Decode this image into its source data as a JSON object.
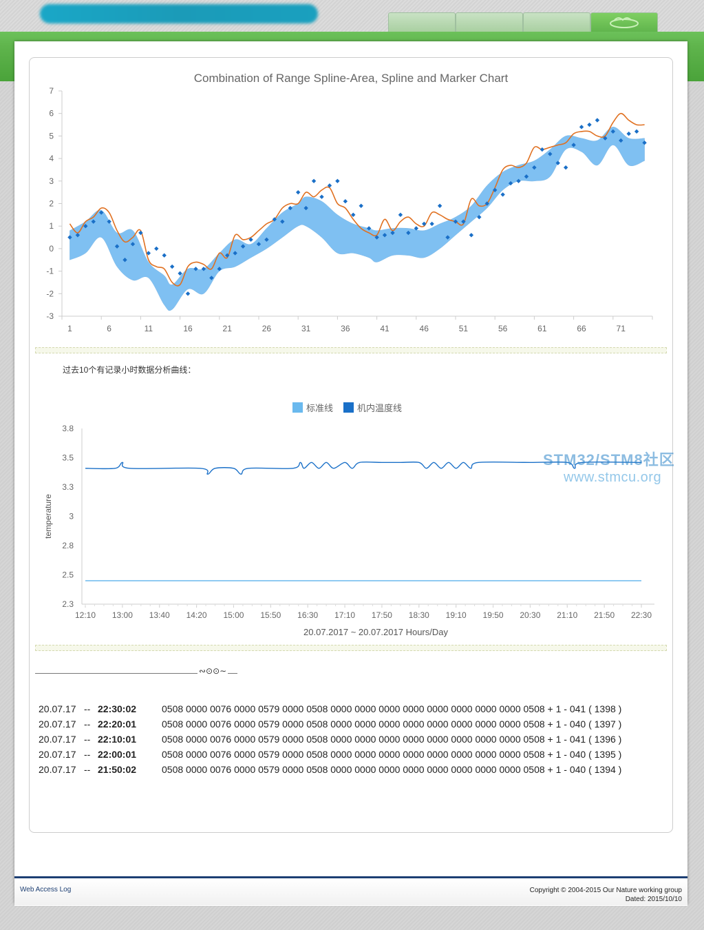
{
  "chart1": {
    "chart_data": {
      "type": "area",
      "title": "Combination of Range Spline-Area, Spline and Marker Chart",
      "ylim": [
        -3,
        7
      ],
      "yticks": [
        -3,
        -2,
        -1,
        0,
        1,
        2,
        3,
        4,
        5,
        6,
        7
      ],
      "xrange": [
        0,
        75
      ],
      "xtick_labels": [
        "1",
        "6",
        "11",
        "16",
        "21",
        "26",
        "31",
        "36",
        "41",
        "46",
        "51",
        "56",
        "61",
        "66",
        "71"
      ],
      "series": [
        {
          "kind": "range-spline-area",
          "color": "#7fc0f2",
          "x": [
            1,
            3,
            5,
            7,
            9,
            11,
            13,
            14,
            16,
            18,
            20,
            22,
            24,
            26,
            28,
            30,
            31,
            33,
            35,
            37,
            39,
            40,
            42,
            44,
            46,
            48,
            50,
            52,
            54,
            56,
            58,
            60,
            62,
            64,
            66,
            68,
            70,
            72,
            74
          ],
          "low": [
            -0.5,
            -0.2,
            0.5,
            -0.8,
            -1.4,
            -1.3,
            -2.5,
            -2.7,
            -1.8,
            -2.0,
            -1.0,
            -0.8,
            -0.4,
            0.0,
            0.5,
            1.0,
            1.0,
            0.5,
            -0.2,
            -0.2,
            -0.4,
            -0.6,
            -0.3,
            -0.3,
            -0.4,
            0.0,
            0.6,
            1.2,
            1.8,
            2.6,
            3.0,
            3.0,
            3.2,
            4.4,
            4.3,
            3.7,
            4.6,
            3.7,
            3.9
          ],
          "high": [
            0.8,
            1.2,
            1.7,
            0.7,
            0.8,
            -0.6,
            -1.2,
            -1.6,
            -0.9,
            -0.9,
            -0.2,
            0.4,
            0.2,
            0.9,
            1.6,
            2.0,
            2.3,
            2.1,
            1.5,
            1.1,
            0.9,
            0.8,
            0.9,
            0.9,
            0.8,
            1.1,
            1.4,
            1.9,
            2.8,
            3.4,
            3.7,
            3.9,
            4.4,
            5.0,
            4.9,
            4.8,
            5.4,
            4.9,
            4.9
          ]
        },
        {
          "kind": "spline",
          "color": "#e07020",
          "x": [
            1,
            2,
            3,
            4,
            5,
            6,
            7,
            8,
            9,
            10,
            11,
            12,
            13,
            14,
            15,
            16,
            17,
            18,
            19,
            20,
            21,
            22,
            23,
            24,
            25,
            26,
            27,
            28,
            29,
            30,
            31,
            32,
            33,
            34,
            35,
            36,
            37,
            38,
            39,
            40,
            41,
            42,
            43,
            44,
            45,
            46,
            47,
            48,
            49,
            50,
            51,
            52,
            53,
            54,
            55,
            56,
            57,
            58,
            59,
            60,
            61,
            62,
            63,
            64,
            65,
            66,
            67,
            68,
            69,
            70,
            71,
            72,
            73,
            74
          ],
          "y": [
            1.1,
            0.7,
            1.2,
            1.4,
            1.8,
            1.6,
            0.8,
            0.3,
            0.5,
            0.8,
            -0.5,
            -0.8,
            -0.9,
            -1.5,
            -1.6,
            -0.8,
            -0.6,
            -0.7,
            -0.9,
            -0.2,
            -0.4,
            0.6,
            0.4,
            0.5,
            0.8,
            1.1,
            1.3,
            1.8,
            2.0,
            2.0,
            2.5,
            2.3,
            2.6,
            2.7,
            2.0,
            1.8,
            1.3,
            0.9,
            0.7,
            0.6,
            1.3,
            0.8,
            1.2,
            1.4,
            1.1,
            1.0,
            1.6,
            1.5,
            1.3,
            1.2,
            1.1,
            2.2,
            1.9,
            2.0,
            2.7,
            3.5,
            3.7,
            3.6,
            3.8,
            4.5,
            4.4,
            4.5,
            4.6,
            4.7,
            5.1,
            5.2,
            5.2,
            5.0,
            5.0,
            5.6,
            6.0,
            5.7,
            5.5,
            5.5
          ]
        },
        {
          "kind": "marker",
          "color": "#1a6fc7",
          "x": [
            1,
            2,
            3,
            4,
            5,
            6,
            7,
            8,
            9,
            10,
            11,
            12,
            13,
            14,
            15,
            16,
            17,
            18,
            19,
            20,
            21,
            22,
            23,
            24,
            25,
            26,
            27,
            28,
            29,
            30,
            31,
            32,
            33,
            34,
            35,
            36,
            37,
            38,
            39,
            40,
            41,
            42,
            43,
            44,
            45,
            46,
            47,
            48,
            49,
            50,
            51,
            52,
            53,
            54,
            55,
            56,
            57,
            58,
            59,
            60,
            61,
            62,
            63,
            64,
            65,
            66,
            67,
            68,
            69,
            70,
            71,
            72,
            73,
            74
          ],
          "y": [
            0.5,
            0.6,
            1.0,
            1.2,
            1.6,
            1.2,
            0.1,
            -0.5,
            0.2,
            0.7,
            -0.2,
            0.0,
            -0.3,
            -0.8,
            -1.1,
            -2.0,
            -0.9,
            -0.9,
            -1.3,
            -0.9,
            -0.3,
            -0.2,
            0.1,
            0.4,
            0.2,
            0.4,
            1.3,
            1.2,
            1.8,
            2.5,
            1.8,
            3.0,
            2.3,
            2.8,
            3.0,
            2.1,
            1.5,
            1.9,
            0.9,
            0.5,
            0.6,
            0.7,
            1.5,
            0.7,
            0.9,
            1.1,
            1.1,
            1.9,
            0.5,
            1.2,
            1.2,
            0.6,
            1.4,
            2.0,
            2.6,
            2.4,
            2.9,
            3.0,
            3.2,
            3.6,
            4.4,
            4.2,
            3.8,
            3.6,
            4.6,
            5.4,
            5.5,
            5.7,
            4.9,
            5.2,
            4.8,
            5.1,
            5.2,
            4.7
          ]
        }
      ]
    }
  },
  "hours_label": "过去10个有记录小时数据分析曲线：",
  "chart2": {
    "chart_data": {
      "type": "line",
      "ylabel": "temperature",
      "xlabel": "20.07.2017 ~ 20.07.2017 Hours/Day",
      "ylim": [
        2.3,
        3.8
      ],
      "yticks": [
        "2.3",
        "2.5",
        "2.8",
        "3",
        "3.3",
        "3.5",
        "3.8"
      ],
      "ytick_values": [
        2.3,
        2.55,
        2.8,
        3.05,
        3.3,
        3.55,
        3.8
      ],
      "x_categories": [
        "12:10",
        "13:00",
        "13:40",
        "14:20",
        "15:00",
        "15:50",
        "16:30",
        "17:10",
        "17:50",
        "18:30",
        "19:10",
        "19:50",
        "20:30",
        "21:10",
        "21:50",
        "22:30"
      ],
      "series": [
        {
          "name": "标准线",
          "color": "#6ab9ee",
          "values": [
            2.5,
            2.5,
            2.5,
            2.5,
            2.5,
            2.5,
            2.5,
            2.5,
            2.5,
            2.5,
            2.5,
            2.5,
            2.5,
            2.5,
            2.5,
            2.5
          ]
        },
        {
          "name": "机内温度线",
          "color": "#1a70c8",
          "t": [
            0,
            0.8,
            1.0,
            1.2,
            3.1,
            3.3,
            3.5,
            4.0,
            4.2,
            4.4,
            5.6,
            5.8,
            5.9,
            6.1,
            6.3,
            6.5,
            6.7,
            7.0,
            7.2,
            7.4,
            8.0,
            8.5,
            9.0,
            9.2,
            9.4,
            9.6,
            9.8,
            10.0,
            10.2,
            10.4,
            10.6,
            12.0,
            13.0,
            13.2,
            13.4,
            15.0
          ],
          "values": [
            3.46,
            3.46,
            3.51,
            3.46,
            3.46,
            3.41,
            3.46,
            3.46,
            3.41,
            3.46,
            3.46,
            3.51,
            3.46,
            3.51,
            3.46,
            3.51,
            3.46,
            3.51,
            3.46,
            3.51,
            3.51,
            3.51,
            3.51,
            3.46,
            3.51,
            3.46,
            3.51,
            3.46,
            3.51,
            3.46,
            3.51,
            3.51,
            3.51,
            3.46,
            3.51,
            3.51
          ]
        }
      ]
    }
  },
  "watermark": {
    "line1": "STM32/STM8社区",
    "line2": "www.stmcu.org"
  },
  "ornament": "∾⊙⊙∼",
  "log": [
    {
      "date": "20.07.17",
      "sep": "--",
      "time": "22:30:02",
      "data": "0508 0000 0076 0000 0579 0000 0508 0000 0000 0000 0000 0000 0000 0000 0000 0508 + 1 - 041   ( 1398 )"
    },
    {
      "date": "20.07.17",
      "sep": "--",
      "time": "22:20:01",
      "data": "0508 0000 0076 0000 0579 0000 0508 0000 0000 0000 0000 0000 0000 0000 0000 0508 + 1 - 040   ( 1397 )"
    },
    {
      "date": "20.07.17",
      "sep": "--",
      "time": "22:10:01",
      "data": "0508 0000 0076 0000 0579 0000 0508 0000 0000 0000 0000 0000 0000 0000 0000 0508 + 1 - 041   ( 1396 )"
    },
    {
      "date": "20.07.17",
      "sep": "--",
      "time": "22:00:01",
      "data": "0508 0000 0076 0000 0579 0000 0508 0000 0000 0000 0000 0000 0000 0000 0000 0508 + 1 - 040   ( 1395 )"
    },
    {
      "date": "20.07.17",
      "sep": "--",
      "time": "21:50:02",
      "data": "0508 0000 0076 0000 0579 0000 0508 0000 0000 0000 0000 0000 0000 0000 0000 0508 + 1 - 040   ( 1394 )"
    }
  ],
  "footer": {
    "left_link": "Web Access Log",
    "copyright": "Copyright © 2004-2015 Our Nature working group",
    "dated": "Dated: 2015/10/10"
  }
}
